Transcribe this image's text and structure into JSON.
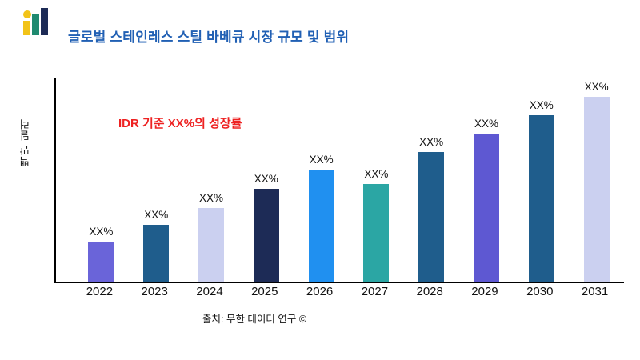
{
  "header": {
    "title": "글로벌 스테인레스 스틸 바베큐 시장 규모 및 범위"
  },
  "logo": {
    "name": "brand-logo",
    "colors": {
      "accent_yellow": "#f2c318",
      "accent_teal": "#1f8a70",
      "accent_navy": "#1d2b56"
    }
  },
  "annotation": {
    "text": "IDR 기준 XX%의 성장률",
    "color": "#ee2222"
  },
  "footer": {
    "source": "출처: 무한 데이터 연구 ©"
  },
  "chart_data": {
    "type": "bar",
    "title": "글로벌 스테인레스 스틸 바베큐 시장 규모 및 범위",
    "ylabel": "백만 달러",
    "xlabel": "",
    "categories": [
      "2022",
      "2023",
      "2024",
      "2025",
      "2026",
      "2027",
      "2028",
      "2029",
      "2030",
      "2031"
    ],
    "values": [
      50,
      71,
      92,
      116,
      140,
      122,
      162,
      185,
      208,
      231
    ],
    "value_labels": [
      "XX%",
      "XX%",
      "XX%",
      "XX%",
      "XX%",
      "XX%",
      "XX%",
      "XX%",
      "XX%",
      "XX%"
    ],
    "bar_colors": [
      "#6a64d9",
      "#1f5d8c",
      "#cbd0f0",
      "#1d2b56",
      "#2090f0",
      "#2ba6a4",
      "#1f5d8c",
      "#5e58d2",
      "#1f5d8c",
      "#cbd0f0"
    ],
    "ylim": [
      0,
      255
    ],
    "units": "relative (no y-axis tick values shown)",
    "grid": false,
    "legend": false,
    "annotation": "IDR 기준 XX%의 성장률"
  }
}
